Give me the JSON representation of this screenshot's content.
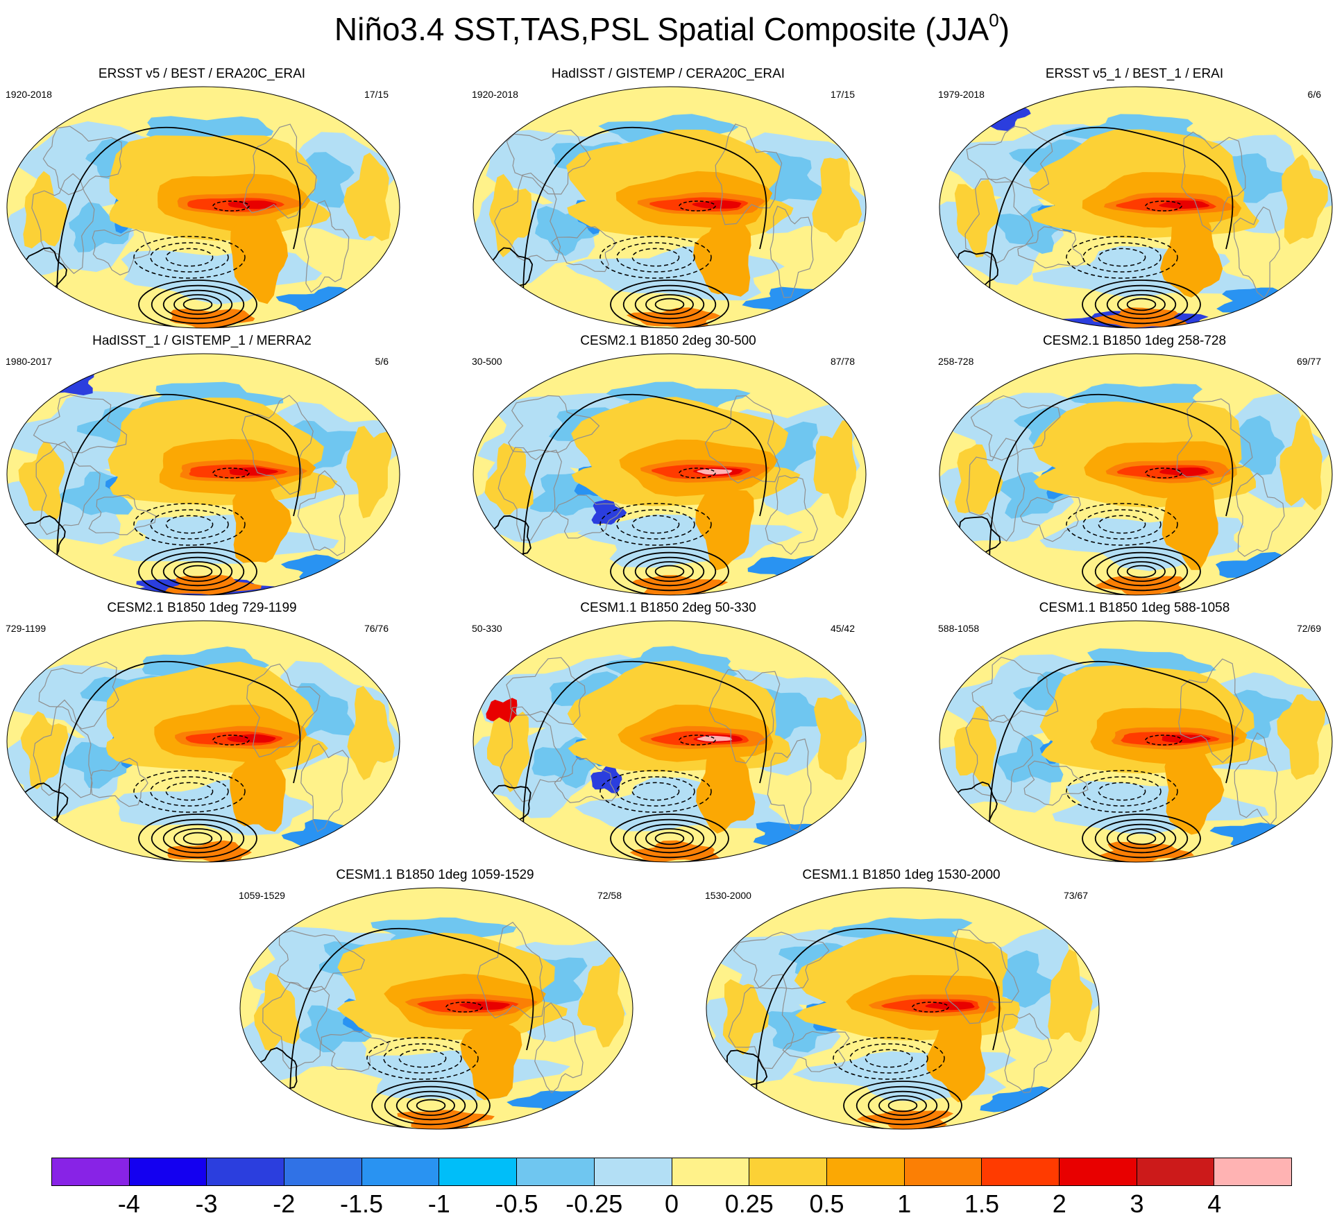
{
  "title": {
    "main": "Niño3.4 SST,TAS,PSL Spatial Composite (JJA",
    "superscript": "0",
    "closing": ")"
  },
  "palette": {
    "ocean_warm_weak": "#fff28a",
    "warm_025": "#fcd136",
    "warm_05": "#fba804",
    "warm_1": "#fb7f05",
    "warm_15": "#ff3b00",
    "warm_2": "#e80000",
    "warm_3": "#cc1a1a",
    "warm_4": "#ffb3b3",
    "cool_025": "#b3dff5",
    "cool_05": "#6fc6f0",
    "cool_1": "#00bef9",
    "cool_15": "#2993f2",
    "cool_2": "#3072e6",
    "cool_3": "#2b3ede",
    "cool_4": "#1400f0",
    "cool_5": "#8823e6",
    "contour": "#000000",
    "coastline": "#8f8f8f"
  },
  "panels": [
    {
      "title": "ERSST v5 / BEST / ERA20C_ERAI",
      "left": "1920-2018",
      "right": "17/15",
      "variant": 0
    },
    {
      "title": "HadISST / GISTEMP / CERA20C_ERAI",
      "left": "1920-2018",
      "right": "17/15",
      "variant": 1
    },
    {
      "title": "ERSST v5_1 / BEST_1 / ERAI",
      "left": "1979-2018",
      "right": "6/6",
      "variant": 2
    },
    {
      "title": "HadISST_1 / GISTEMP_1 / MERRA2",
      "left": "1980-2017",
      "right": "5/6",
      "variant": 3
    },
    {
      "title": "CESM2.1 B1850 2deg 30-500",
      "left": "30-500",
      "right": "87/78",
      "variant": 4
    },
    {
      "title": "CESM2.1 B1850 1deg 258-728",
      "left": "258-728",
      "right": "69/77",
      "variant": 5
    },
    {
      "title": "CESM2.1 B1850 1deg 729-1199",
      "left": "729-1199",
      "right": "76/76",
      "variant": 6
    },
    {
      "title": "CESM1.1 B1850 2deg 50-330",
      "left": "50-330",
      "right": "45/42",
      "variant": 7
    },
    {
      "title": "CESM1.1 B1850 1deg 588-1058",
      "left": "588-1058",
      "right": "72/69",
      "variant": 8
    },
    {
      "title": "CESM1.1 B1850 1deg 1059-1529",
      "left": "1059-1529",
      "right": "72/58",
      "variant": 9
    },
    {
      "title": "CESM1.1 B1850 1deg 1530-2000",
      "left": "1530-2000",
      "right": "73/67",
      "variant": 10
    }
  ],
  "colorbar": {
    "colors": [
      "#8823e6",
      "#1400f0",
      "#2b3ede",
      "#3072e6",
      "#2993f2",
      "#00bef9",
      "#6fc6f0",
      "#b3dff5",
      "#fff28a",
      "#fcd136",
      "#fba804",
      "#fb7f05",
      "#ff3b00",
      "#e80000",
      "#cc1a1a",
      "#ffb3b3"
    ],
    "labels": [
      "-4",
      "-3",
      "-2",
      "-1.5",
      "-1",
      "-0.5",
      "-0.25",
      "0",
      "0.25",
      "0.5",
      "1",
      "1.5",
      "2",
      "3",
      "4"
    ]
  }
}
